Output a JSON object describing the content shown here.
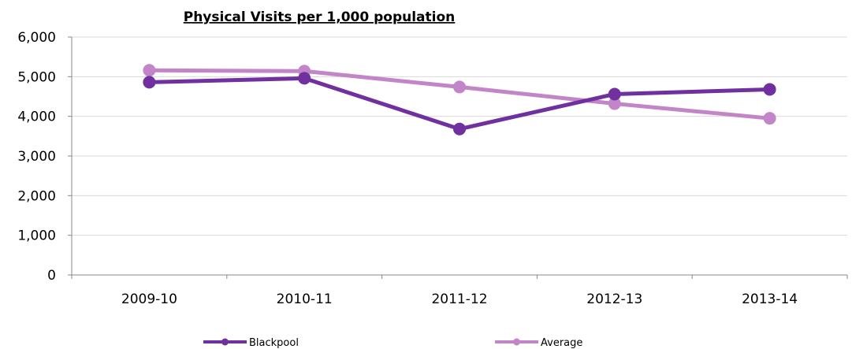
{
  "chart_data": {
    "type": "line",
    "title": "Physical Visits per 1,000 population",
    "categories": [
      "2009-10",
      "2010-11",
      "2011-12",
      "2012-13",
      "2013-14"
    ],
    "ylim": [
      0,
      6000
    ],
    "yticks": [
      0,
      1000,
      2000,
      3000,
      4000,
      5000,
      6000
    ],
    "ytick_labels": [
      "0",
      "1,000",
      "2,000",
      "3,000",
      "4,000",
      "5,000",
      "6,000"
    ],
    "grid": true,
    "legend_position": "bottom",
    "series": [
      {
        "name": "Blackpool",
        "values": [
          4860,
          4960,
          3680,
          4560,
          4680
        ],
        "color": "#7030a0"
      },
      {
        "name": "Average",
        "values": [
          5160,
          5140,
          4740,
          4320,
          3950
        ],
        "color": "#c285c8"
      }
    ]
  }
}
